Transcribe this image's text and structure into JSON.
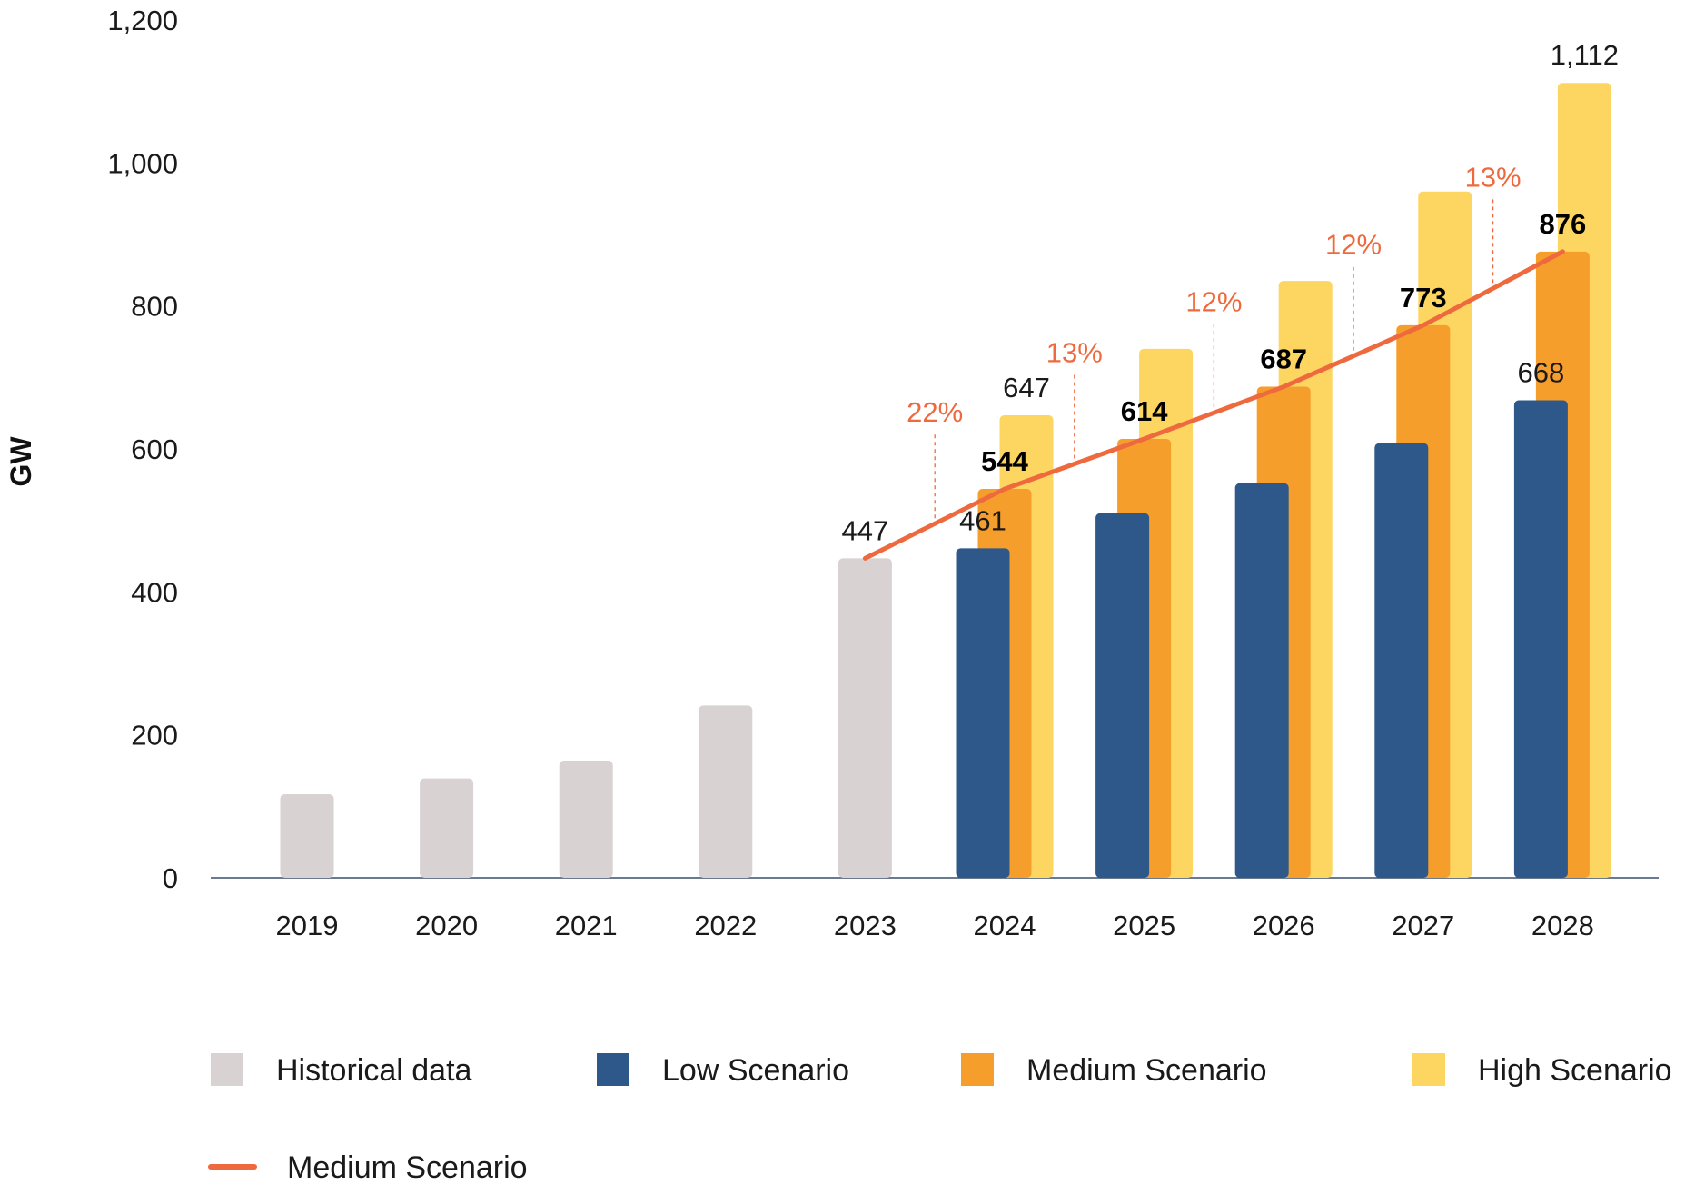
{
  "chart_data": {
    "type": "bar",
    "ylabel": "GW",
    "xlabel": "",
    "ylim": [
      0,
      1200
    ],
    "yticks": [
      "0",
      "200",
      "400",
      "600",
      "800",
      "1,000",
      "1,200"
    ],
    "categories": [
      "2019",
      "2020",
      "2021",
      "2022",
      "2023",
      "2024",
      "2025",
      "2026",
      "2027",
      "2028"
    ],
    "series": [
      {
        "name": "Historical data",
        "color": "#d9d2d2",
        "values": [
          117,
          139,
          164,
          241,
          447,
          null,
          null,
          null,
          null,
          null
        ],
        "labels": [
          "",
          "",
          "",
          "",
          "447",
          "",
          "",
          "",
          "",
          ""
        ]
      },
      {
        "name": "Low Scenario",
        "color": "#2d5889",
        "values": [
          null,
          null,
          null,
          null,
          null,
          461,
          510,
          552,
          608,
          668
        ],
        "labels": [
          "",
          "",
          "",
          "",
          "",
          "461",
          "",
          "",
          "",
          "668"
        ]
      },
      {
        "name": "Medium Scenario",
        "color": "#f59e2b",
        "values": [
          null,
          null,
          null,
          null,
          null,
          544,
          614,
          687,
          773,
          876
        ],
        "labels": [
          "",
          "",
          "",
          "",
          "",
          "544",
          "614",
          "687",
          "773",
          "876"
        ]
      },
      {
        "name": "High Scenario",
        "color": "#fdd561",
        "values": [
          null,
          null,
          null,
          null,
          null,
          647,
          740,
          835,
          960,
          1112
        ],
        "labels": [
          "",
          "",
          "",
          "",
          "",
          "647",
          "",
          "",
          "",
          "1,112"
        ]
      }
    ],
    "line": {
      "name": "Medium Scenario",
      "color": "#ee6a3e",
      "values": [
        null,
        null,
        null,
        null,
        447,
        544,
        614,
        687,
        773,
        876
      ]
    },
    "growth_rates": [
      {
        "between": [
          "2023",
          "2024"
        ],
        "label": "22%"
      },
      {
        "between": [
          "2024",
          "2025"
        ],
        "label": "13%"
      },
      {
        "between": [
          "2025",
          "2026"
        ],
        "label": "12%"
      },
      {
        "between": [
          "2026",
          "2027"
        ],
        "label": "12%"
      },
      {
        "between": [
          "2027",
          "2028"
        ],
        "label": "13%"
      }
    ],
    "legend": {
      "placement": "bottom",
      "items": [
        {
          "label": "Historical data",
          "color": "#d9d2d2",
          "kind": "box"
        },
        {
          "label": "Low Scenario",
          "color": "#2d5889",
          "kind": "box"
        },
        {
          "label": "Medium Scenario",
          "color": "#f59e2b",
          "kind": "box"
        },
        {
          "label": "High Scenario",
          "color": "#fdd561",
          "kind": "box"
        },
        {
          "label": "Medium Scenario",
          "color": "#ee6a3e",
          "kind": "line"
        }
      ]
    },
    "grid": false
  }
}
